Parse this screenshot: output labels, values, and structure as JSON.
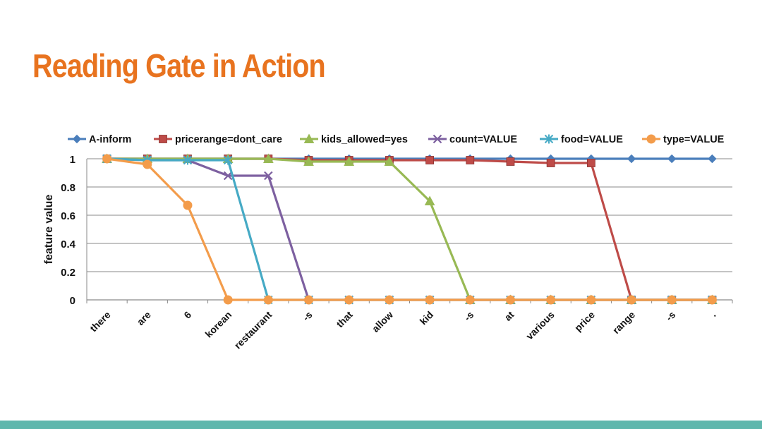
{
  "slide": {
    "title": "Reading Gate in Action"
  },
  "colors": {
    "title": "#e8731f",
    "footer": "#5fb7ad"
  },
  "chart_data": {
    "type": "line",
    "title": "",
    "xlabel": "",
    "ylabel": "feature value",
    "ylim": [
      0,
      1
    ],
    "yticks": [
      "0",
      "0.2",
      "0.4",
      "0.6",
      "0.8",
      "1"
    ],
    "grid": true,
    "legend_position": "top",
    "categories": [
      "there",
      "are",
      "6",
      "korean",
      "restaurant",
      "-s",
      "that",
      "allow",
      "kid",
      "-s",
      "at",
      "various",
      "price",
      "range",
      "-s",
      "."
    ],
    "series": [
      {
        "name": "A-inform",
        "color": "#4a7ebb",
        "marker": "diamond",
        "values": [
          1,
          1,
          1,
          1,
          1,
          1,
          1,
          1,
          1,
          1,
          1,
          1,
          1,
          1,
          1,
          1
        ]
      },
      {
        "name": "pricerange=dont_care",
        "color": "#be4b48",
        "marker": "square",
        "values": [
          1,
          1,
          1,
          1,
          1,
          0.99,
          0.99,
          0.99,
          0.99,
          0.99,
          0.98,
          0.97,
          0.97,
          0,
          0,
          0
        ]
      },
      {
        "name": "kids_allowed=yes",
        "color": "#98b954",
        "marker": "triangle",
        "values": [
          1,
          1,
          1,
          1,
          1,
          0.98,
          0.98,
          0.98,
          0.7,
          0,
          0,
          0,
          0,
          0,
          0,
          0
        ]
      },
      {
        "name": "count=VALUE",
        "color": "#7d60a0",
        "marker": "x",
        "values": [
          1,
          0.99,
          0.99,
          0.88,
          0.88,
          0,
          0,
          0,
          0,
          0,
          0,
          0,
          0,
          0,
          0,
          0
        ]
      },
      {
        "name": "food=VALUE",
        "color": "#46aac5",
        "marker": "star",
        "values": [
          1,
          0.99,
          0.99,
          0.99,
          0,
          0,
          0,
          0,
          0,
          0,
          0,
          0,
          0,
          0,
          0,
          0
        ]
      },
      {
        "name": "type=VALUE",
        "color": "#f39c4b",
        "marker": "circle",
        "values": [
          1,
          0.96,
          0.67,
          0,
          0,
          0,
          0,
          0,
          0,
          0,
          0,
          0,
          0,
          0,
          0,
          0
        ]
      }
    ]
  }
}
